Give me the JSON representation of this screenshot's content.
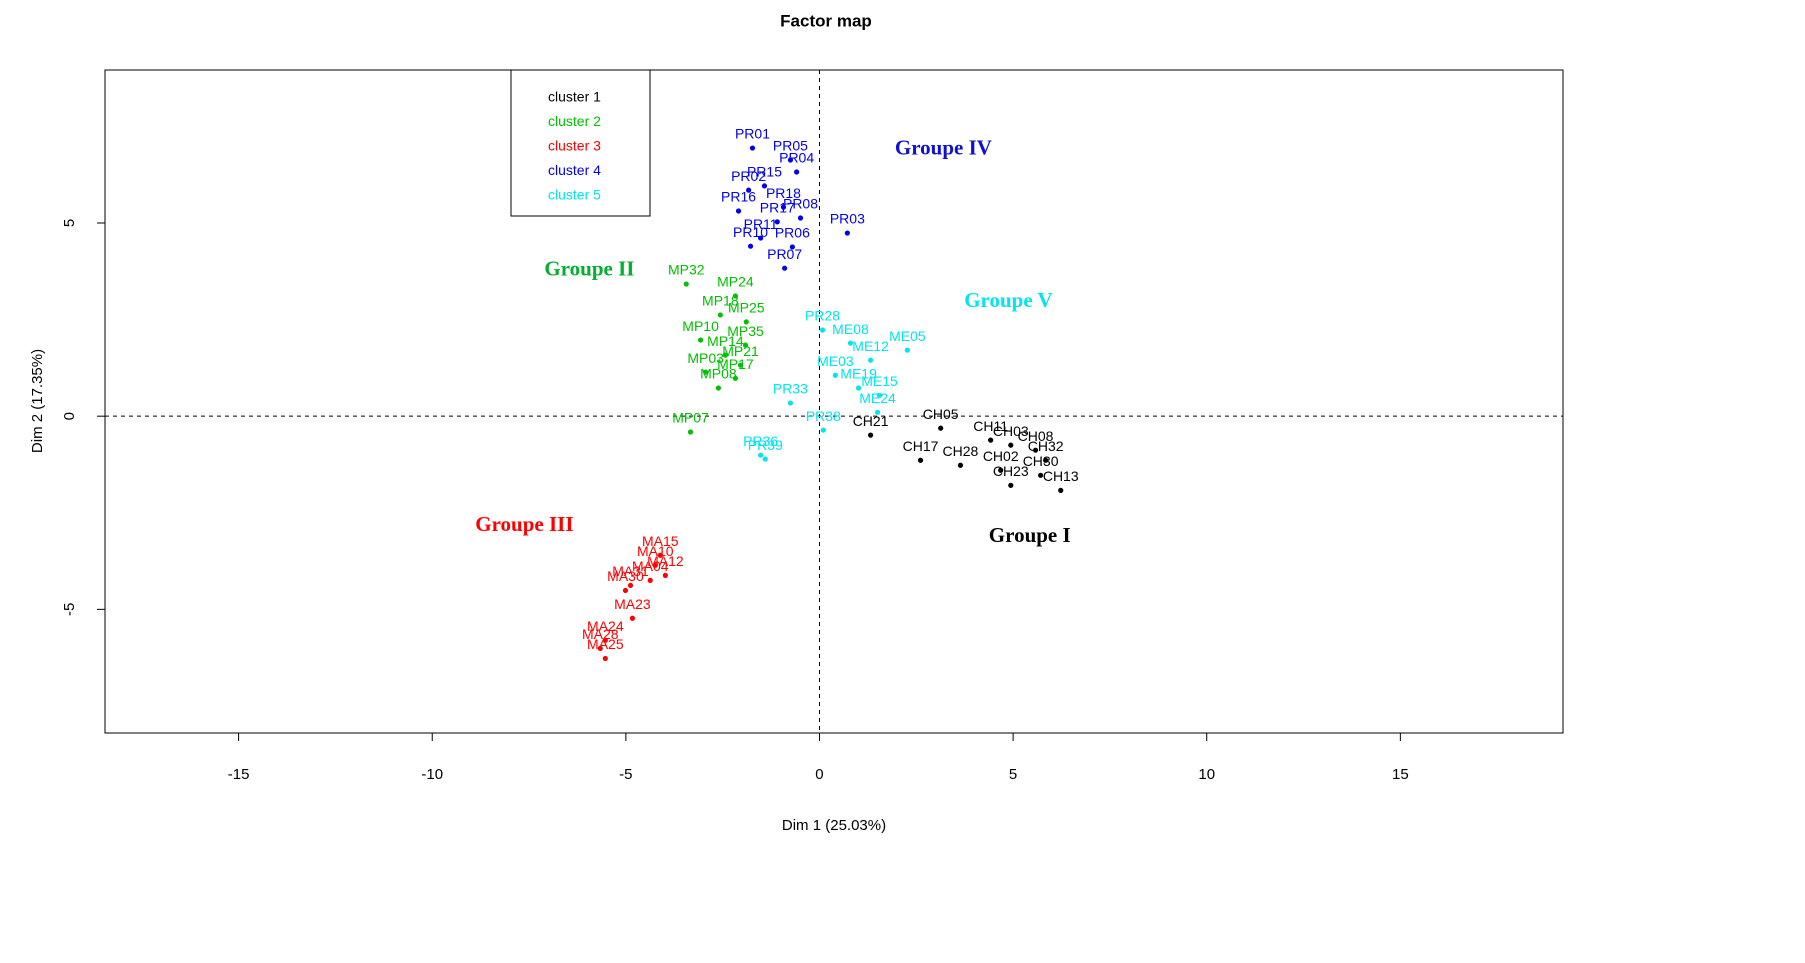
{
  "chart_data": {
    "type": "scatter",
    "title": "Factor map",
    "x_label": "Dim 1 (25.03%)",
    "y_label": "Dim 2 (17.35%)",
    "xlim": [
      -18.45,
      19.2
    ],
    "ylim": [
      -8.2,
      8.96
    ],
    "xticks": [
      -15,
      -10,
      -5,
      0,
      5,
      10,
      15
    ],
    "yticks": [
      -5,
      0,
      5
    ],
    "hline": 0,
    "vline": 0,
    "legend": "top-left",
    "series": [
      {
        "name": "cluster 1",
        "color": "#000000",
        "labels": [
          "CH21",
          "CH05",
          "CH11",
          "CH03",
          "CH08",
          "CH32",
          "CH13",
          "CH23",
          "CH17",
          "CH28",
          "CH02",
          "CH30"
        ],
        "x": [
          1.32,
          3.13,
          4.42,
          4.94,
          5.58,
          5.84,
          6.23,
          4.94,
          2.61,
          3.64,
          4.68,
          5.71
        ],
        "y": [
          -0.49,
          -0.31,
          -0.62,
          -0.75,
          -0.88,
          -1.14,
          -1.92,
          -1.79,
          -1.14,
          -1.27,
          -1.4,
          -1.53
        ]
      },
      {
        "name": "cluster 2",
        "color": "#00c000",
        "labels": [
          "MP32",
          "MP24",
          "MP18",
          "MP25",
          "MP35",
          "MP08",
          "MP07",
          "MP10",
          "MP14",
          "MP21",
          "MP03",
          "MP17"
        ],
        "x": [
          -3.44,
          -2.17,
          -2.56,
          -1.89,
          -1.91,
          -2.61,
          -3.33,
          -3.07,
          -2.43,
          -2.04,
          -2.94,
          -2.17
        ],
        "y": [
          3.42,
          3.11,
          2.62,
          2.44,
          1.84,
          0.73,
          -0.41,
          1.97,
          1.58,
          1.32,
          1.14,
          0.98
        ]
      },
      {
        "name": "cluster 3",
        "color": "#ff0000",
        "labels": [
          "MA15",
          "MA12",
          "MA04",
          "MA31",
          "MA30",
          "MA23",
          "MA24",
          "MA28",
          "MA25",
          "MA10"
        ],
        "x": [
          -4.11,
          -3.98,
          -4.37,
          -4.88,
          -5.01,
          -4.83,
          -5.53,
          -5.66,
          -5.53,
          -4.24
        ],
        "y": [
          -3.6,
          -4.12,
          -4.25,
          -4.38,
          -4.51,
          -5.23,
          -5.8,
          -6.01,
          -6.27,
          -3.86
        ]
      },
      {
        "name": "cluster 4",
        "color": "#0000ee",
        "labels": [
          "PR01",
          "PR05",
          "PR04",
          "PR15",
          "PR02",
          "PR16",
          "PR18",
          "PR08",
          "PR17",
          "PR03",
          "PR11",
          "PR10",
          "PR06",
          "PR07"
        ],
        "x": [
          -1.73,
          -0.75,
          -0.59,
          -1.42,
          -1.83,
          -2.09,
          -0.93,
          -0.49,
          -1.09,
          0.72,
          -1.52,
          -1.78,
          -0.7,
          -0.9
        ],
        "y": [
          6.94,
          6.63,
          6.32,
          5.96,
          5.85,
          5.31,
          5.41,
          5.13,
          5.03,
          4.74,
          4.61,
          4.4,
          4.38,
          3.83
        ]
      },
      {
        "name": "cluster 5",
        "color": "#00e5ee",
        "labels": [
          "PR28",
          "ME08",
          "ME05",
          "ME19",
          "ME24",
          "PR33",
          "PR38",
          "PR36",
          "PR39",
          "ME12",
          "ME03",
          "ME15"
        ],
        "x": [
          0.08,
          0.8,
          2.27,
          1.01,
          1.5,
          -0.75,
          0.1,
          -1.52,
          -1.4,
          1.32,
          0.41,
          1.55
        ],
        "y": [
          2.23,
          1.89,
          1.71,
          0.73,
          0.1,
          0.34,
          -0.36,
          -1.01,
          -1.11,
          1.45,
          1.06,
          0.54
        ]
      }
    ],
    "annotations": [
      {
        "text": "Groupe I",
        "color": "#000000",
        "x": 5.43,
        "y": -3.13
      },
      {
        "text": "Groupe II",
        "color": "#00b030",
        "x": -5.94,
        "y": 3.76
      },
      {
        "text": "Groupe III",
        "color": "#ff0000",
        "x": -7.62,
        "y": -2.85
      },
      {
        "text": "Groupe IV",
        "color": "#1010d0",
        "x": 3.2,
        "y": 6.9
      },
      {
        "text": "Groupe V",
        "color": "#00e5ee",
        "x": 4.88,
        "y": 2.95
      }
    ]
  }
}
